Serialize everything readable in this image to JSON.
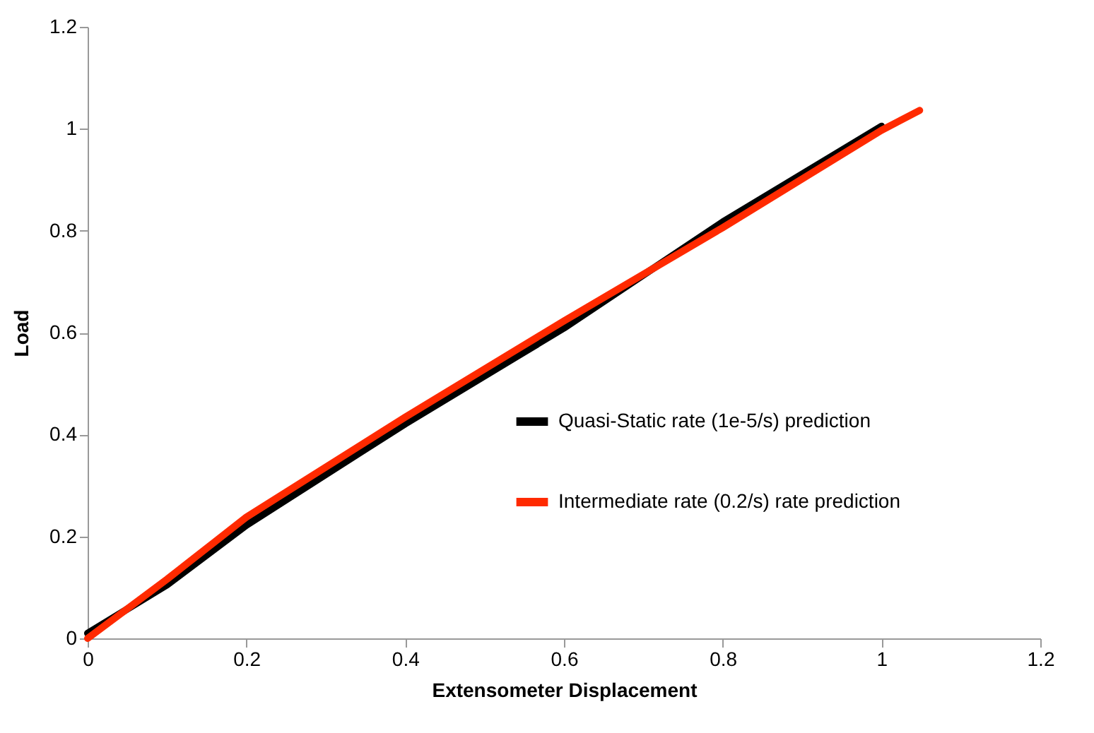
{
  "chart_data": {
    "type": "line",
    "xlabel": "Extensometer Displacement",
    "ylabel": "Load",
    "xlim": [
      0,
      1.2
    ],
    "xticks": [
      0,
      0.2,
      0.4,
      0.6,
      0.8,
      1,
      1.2
    ],
    "ylim": [
      0,
      1.2
    ],
    "yticks": [
      0,
      0.2,
      0.4,
      0.6,
      0.8,
      1,
      1.2
    ],
    "grid": false,
    "legend": "right",
    "marker": "none",
    "line_style": "solid",
    "series": [
      {
        "name": "Quasi-Static rate (1e-5/s) prediction",
        "color": "#000000",
        "x": [
          0,
          0.1,
          0.2,
          0.4,
          0.6,
          0.8,
          1.0
        ],
        "values": [
          0.01,
          0.105,
          0.222,
          0.421,
          0.609,
          0.817,
          1.005
        ]
      },
      {
        "name": "Intermediate rate (0.2/s) rate prediction",
        "color": "#ff2a00",
        "x": [
          0,
          0.1,
          0.2,
          0.4,
          0.6,
          0.8,
          1.0,
          1.048
        ],
        "values": [
          0,
          0.116,
          0.238,
          0.434,
          0.623,
          0.806,
          0.997,
          1.036
        ]
      }
    ]
  }
}
